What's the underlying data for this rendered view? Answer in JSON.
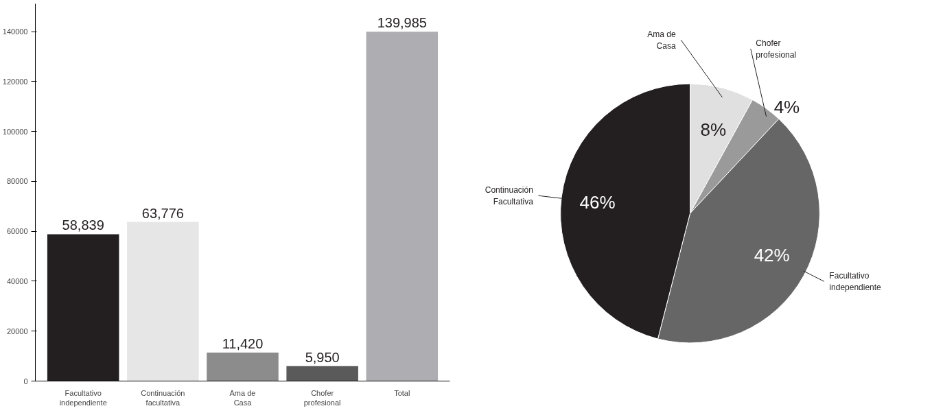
{
  "chart_data": [
    {
      "type": "bar",
      "categories": [
        "Facultativo independiente",
        "Continuación facultativa",
        "Ama de Casa",
        "Chofer profesional",
        "Total"
      ],
      "values": [
        58839,
        63776,
        11420,
        5950,
        139985
      ],
      "colors": [
        "#231f20",
        "#e6e6e6",
        "#8c8c8c",
        "#5a5a5a",
        "#aeaeb2"
      ],
      "value_labels": [
        "58,839",
        "63,776",
        "11,420",
        "5,950",
        "139,985"
      ],
      "ylim": [
        0,
        140000
      ],
      "yticks": [
        0,
        20000,
        40000,
        60000,
        80000,
        100000,
        120000,
        140000
      ],
      "grid": false
    },
    {
      "type": "pie",
      "categories": [
        "Ama de Casa",
        "Chofer profesional",
        "Facultativo independiente",
        "Continuación Facultativa"
      ],
      "values": [
        8,
        4,
        42,
        46
      ],
      "colors": [
        "#e0e0e0",
        "#9a9a9a",
        "#666666",
        "#231f20"
      ],
      "value_labels": [
        "8%",
        "4%",
        "42%",
        "46%"
      ]
    }
  ]
}
